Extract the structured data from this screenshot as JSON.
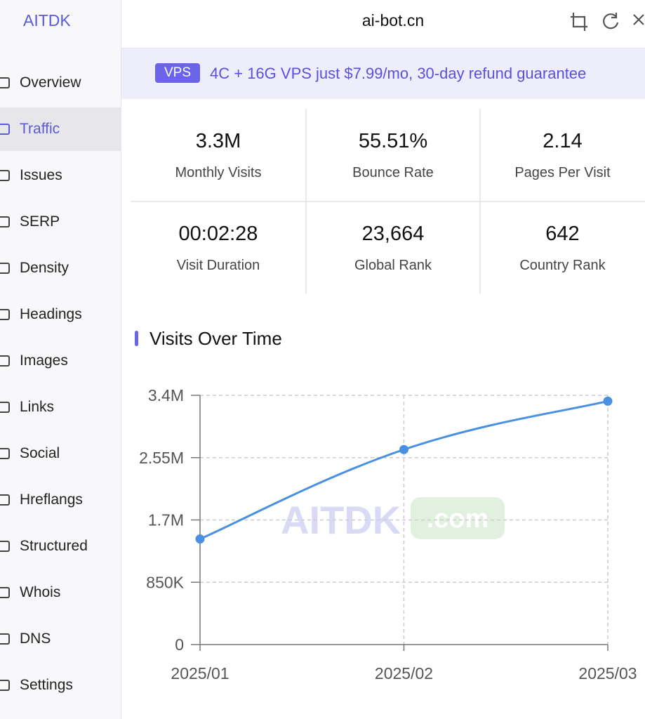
{
  "sidebar": {
    "logo": "AITDK",
    "active": 1,
    "items": [
      "Overview",
      "Traffic",
      "Issues",
      "SERP",
      "Density",
      "Headings",
      "Images",
      "Links",
      "Social",
      "Hreflangs",
      "Structured",
      "Whois",
      "DNS",
      "Settings"
    ]
  },
  "header": {
    "url": "ai-bot.cn"
  },
  "banner": {
    "badge": "VPS",
    "text": "4C + 16G VPS just $7.99/mo, 30-day refund guarantee"
  },
  "stats": [
    {
      "value": "3.3M",
      "label": "Monthly Visits"
    },
    {
      "value": "55.51%",
      "label": "Bounce Rate"
    },
    {
      "value": "2.14",
      "label": "Pages Per Visit"
    },
    {
      "value": "00:02:28",
      "label": "Visit Duration"
    },
    {
      "value": "23,664",
      "label": "Global Rank"
    },
    {
      "value": "642",
      "label": "Country Rank"
    }
  ],
  "section_title": "Visits Over Time",
  "watermark": {
    "text": "AITDK",
    "suffix": ".com"
  },
  "chart_data": {
    "type": "line",
    "categories": [
      "2025/01",
      "2025/02",
      "2025/03"
    ],
    "values": [
      1440000,
      2660000,
      3320000
    ],
    "color": "#4a90e2",
    "ylim": [
      0,
      3400000
    ],
    "yticks": [
      0,
      {
        "value": 850000,
        "label": "850K"
      },
      {
        "value": 1700000,
        "label": "1.7M"
      },
      {
        "value": 2550000,
        "label": "2.55M"
      },
      {
        "value": 3400000,
        "label": "3.4M"
      }
    ],
    "grid": true
  }
}
